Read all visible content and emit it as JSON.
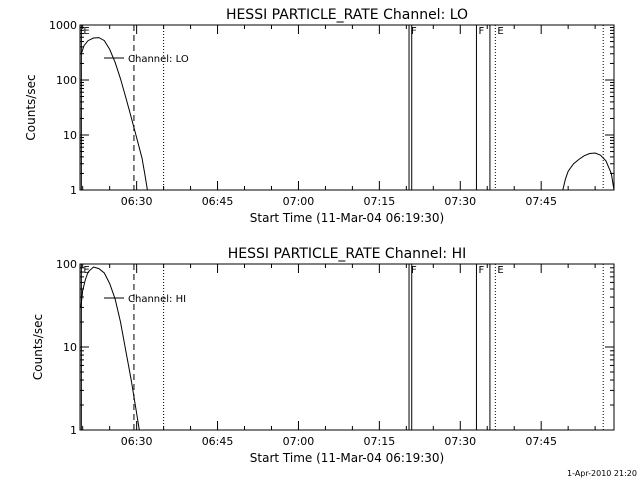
{
  "footer": {
    "timestamp": "1-Apr-2010 21:20"
  },
  "chart_data": [
    {
      "type": "line",
      "title": "HESSI PARTICLE_RATE Channel: LO",
      "xlabel": "Start Time (11-Mar-04 06:19:30)",
      "ylabel": "Counts/sec",
      "y_scale": "log",
      "xlim": [
        "06:19:30",
        "07:58:30"
      ],
      "ylim": [
        1,
        1000
      ],
      "x_tick_labels": [
        "06:30",
        "06:45",
        "07:00",
        "07:15",
        "07:30",
        "07:45"
      ],
      "y_tick_labels": [
        "1",
        "10",
        "100",
        "1000"
      ],
      "y_tick_values": [
        1,
        10,
        100,
        1000
      ],
      "legend": "Channel: LO",
      "series": [
        {
          "points": [
            [
              "06:19:45",
              300
            ],
            [
              "06:20:15",
              420
            ],
            [
              "06:21:00",
              520
            ],
            [
              "06:22:00",
              580
            ],
            [
              "06:23:00",
              590
            ],
            [
              "06:24:00",
              520
            ],
            [
              "06:25:00",
              360
            ],
            [
              "06:26:00",
              210
            ],
            [
              "06:27:00",
              105
            ],
            [
              "06:28:00",
              48
            ],
            [
              "06:29:00",
              21
            ],
            [
              "06:30:00",
              9
            ],
            [
              "06:31:00",
              3.8
            ],
            [
              "06:31:30",
              2
            ],
            [
              "06:32:00",
              1
            ]
          ]
        },
        {
          "points": [
            [
              "07:49:00",
              1
            ],
            [
              "07:49:30",
              1.6
            ],
            [
              "07:50:00",
              2.2
            ],
            [
              "07:51:00",
              3
            ],
            [
              "07:52:00",
              3.6
            ],
            [
              "07:53:00",
              4.2
            ],
            [
              "07:54:00",
              4.6
            ],
            [
              "07:55:00",
              4.7
            ],
            [
              "07:56:00",
              4.3
            ],
            [
              "07:57:00",
              3.4
            ],
            [
              "07:58:00",
              2
            ],
            [
              "07:58:30",
              1
            ]
          ]
        }
      ],
      "markers": [
        {
          "time": "06:19:45",
          "style": "solid",
          "label": "E"
        },
        {
          "time": "06:29:30",
          "style": "dashed",
          "label": ""
        },
        {
          "time": "06:35:00",
          "style": "dotted",
          "label": ""
        },
        {
          "time": "07:20:30",
          "style": "solid",
          "label": "F"
        },
        {
          "time": "07:21:00",
          "style": "solid",
          "label": ""
        },
        {
          "time": "07:33:00",
          "style": "solid",
          "label": "F"
        },
        {
          "time": "07:35:30",
          "style": "solid",
          "label": ""
        },
        {
          "time": "07:36:30",
          "style": "dotted",
          "label": "E"
        },
        {
          "time": "07:56:30",
          "style": "dotted",
          "label": ""
        }
      ]
    },
    {
      "type": "line",
      "title": "HESSI PARTICLE_RATE Channel: HI",
      "xlabel": "Start Time (11-Mar-04 06:19:30)",
      "ylabel": "Counts/sec",
      "y_scale": "log",
      "xlim": [
        "06:19:30",
        "07:58:30"
      ],
      "ylim": [
        1,
        100
      ],
      "x_tick_labels": [
        "06:30",
        "06:45",
        "07:00",
        "07:15",
        "07:30",
        "07:45"
      ],
      "y_tick_labels": [
        "1",
        "10",
        "100"
      ],
      "y_tick_values": [
        1,
        10,
        100
      ],
      "legend": "Channel: HI",
      "series": [
        {
          "points": [
            [
              "06:19:40",
              30
            ],
            [
              "06:20:00",
              48
            ],
            [
              "06:20:30",
              65
            ],
            [
              "06:21:00",
              80
            ],
            [
              "06:22:00",
              92
            ],
            [
              "06:23:00",
              88
            ],
            [
              "06:24:00",
              78
            ],
            [
              "06:25:00",
              58
            ],
            [
              "06:26:00",
              38
            ],
            [
              "06:27:00",
              20
            ],
            [
              "06:28:00",
              9
            ],
            [
              "06:29:00",
              4
            ],
            [
              "06:30:00",
              1.6
            ],
            [
              "06:30:30",
              1
            ]
          ]
        }
      ],
      "markers": [
        {
          "time": "06:19:45",
          "style": "solid",
          "label": "E"
        },
        {
          "time": "06:29:30",
          "style": "dashed",
          "label": ""
        },
        {
          "time": "06:35:00",
          "style": "dotted",
          "label": ""
        },
        {
          "time": "07:20:30",
          "style": "solid",
          "label": "F"
        },
        {
          "time": "07:21:00",
          "style": "solid",
          "label": ""
        },
        {
          "time": "07:33:00",
          "style": "solid",
          "label": "F"
        },
        {
          "time": "07:35:30",
          "style": "solid",
          "label": ""
        },
        {
          "time": "07:36:30",
          "style": "dotted",
          "label": "E"
        },
        {
          "time": "07:56:30",
          "style": "dotted",
          "label": ""
        }
      ]
    }
  ]
}
